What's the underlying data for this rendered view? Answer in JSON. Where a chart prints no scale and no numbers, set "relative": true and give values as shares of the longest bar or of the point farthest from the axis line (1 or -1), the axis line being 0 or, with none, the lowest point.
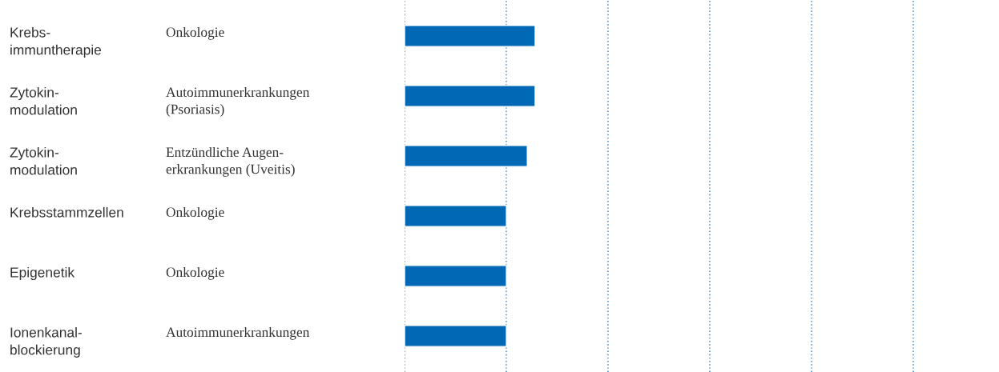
{
  "chart_data": {
    "type": "bar",
    "orientation": "horizontal",
    "relative": true,
    "categories": [
      "Krebs-\nimmuntherapie",
      "Zytokin-\nmodulation",
      "Zytokin-\nmodulation",
      "Krebsstammzellen",
      "Epigenetik",
      "Ionenkanal-\nblockierung"
    ],
    "annotations": [
      "Onkologie",
      "Autoimmunerkrankungen\n(Psoriasis)",
      "Entzündliche Augen-\nerkrankungen (Uveitis)",
      "Onkologie",
      "Onkologie",
      "Autoimmunerkrankungen"
    ],
    "values": [
      1,
      1,
      0.94,
      0.78,
      0.78,
      0.78
    ],
    "color": "#0068b4",
    "ref_lines": [
      {
        "axis": "x",
        "value": 0,
        "color": "#2a7fc8",
        "line_style": "dotted"
      },
      {
        "axis": "x",
        "value": 0.779,
        "color": "#2a7fc8",
        "line_style": "dotted"
      },
      {
        "axis": "x",
        "value": 1.558,
        "color": "#2a7fc8",
        "line_style": "dotted"
      },
      {
        "axis": "x",
        "value": 2.337,
        "color": "#2a7fc8",
        "line_style": "dotted"
      },
      {
        "axis": "x",
        "value": 3.117,
        "color": "#2a7fc8",
        "line_style": "dotted"
      },
      {
        "axis": "x",
        "value": 3.896,
        "color": "#2a7fc8",
        "line_style": "dotted"
      }
    ]
  }
}
